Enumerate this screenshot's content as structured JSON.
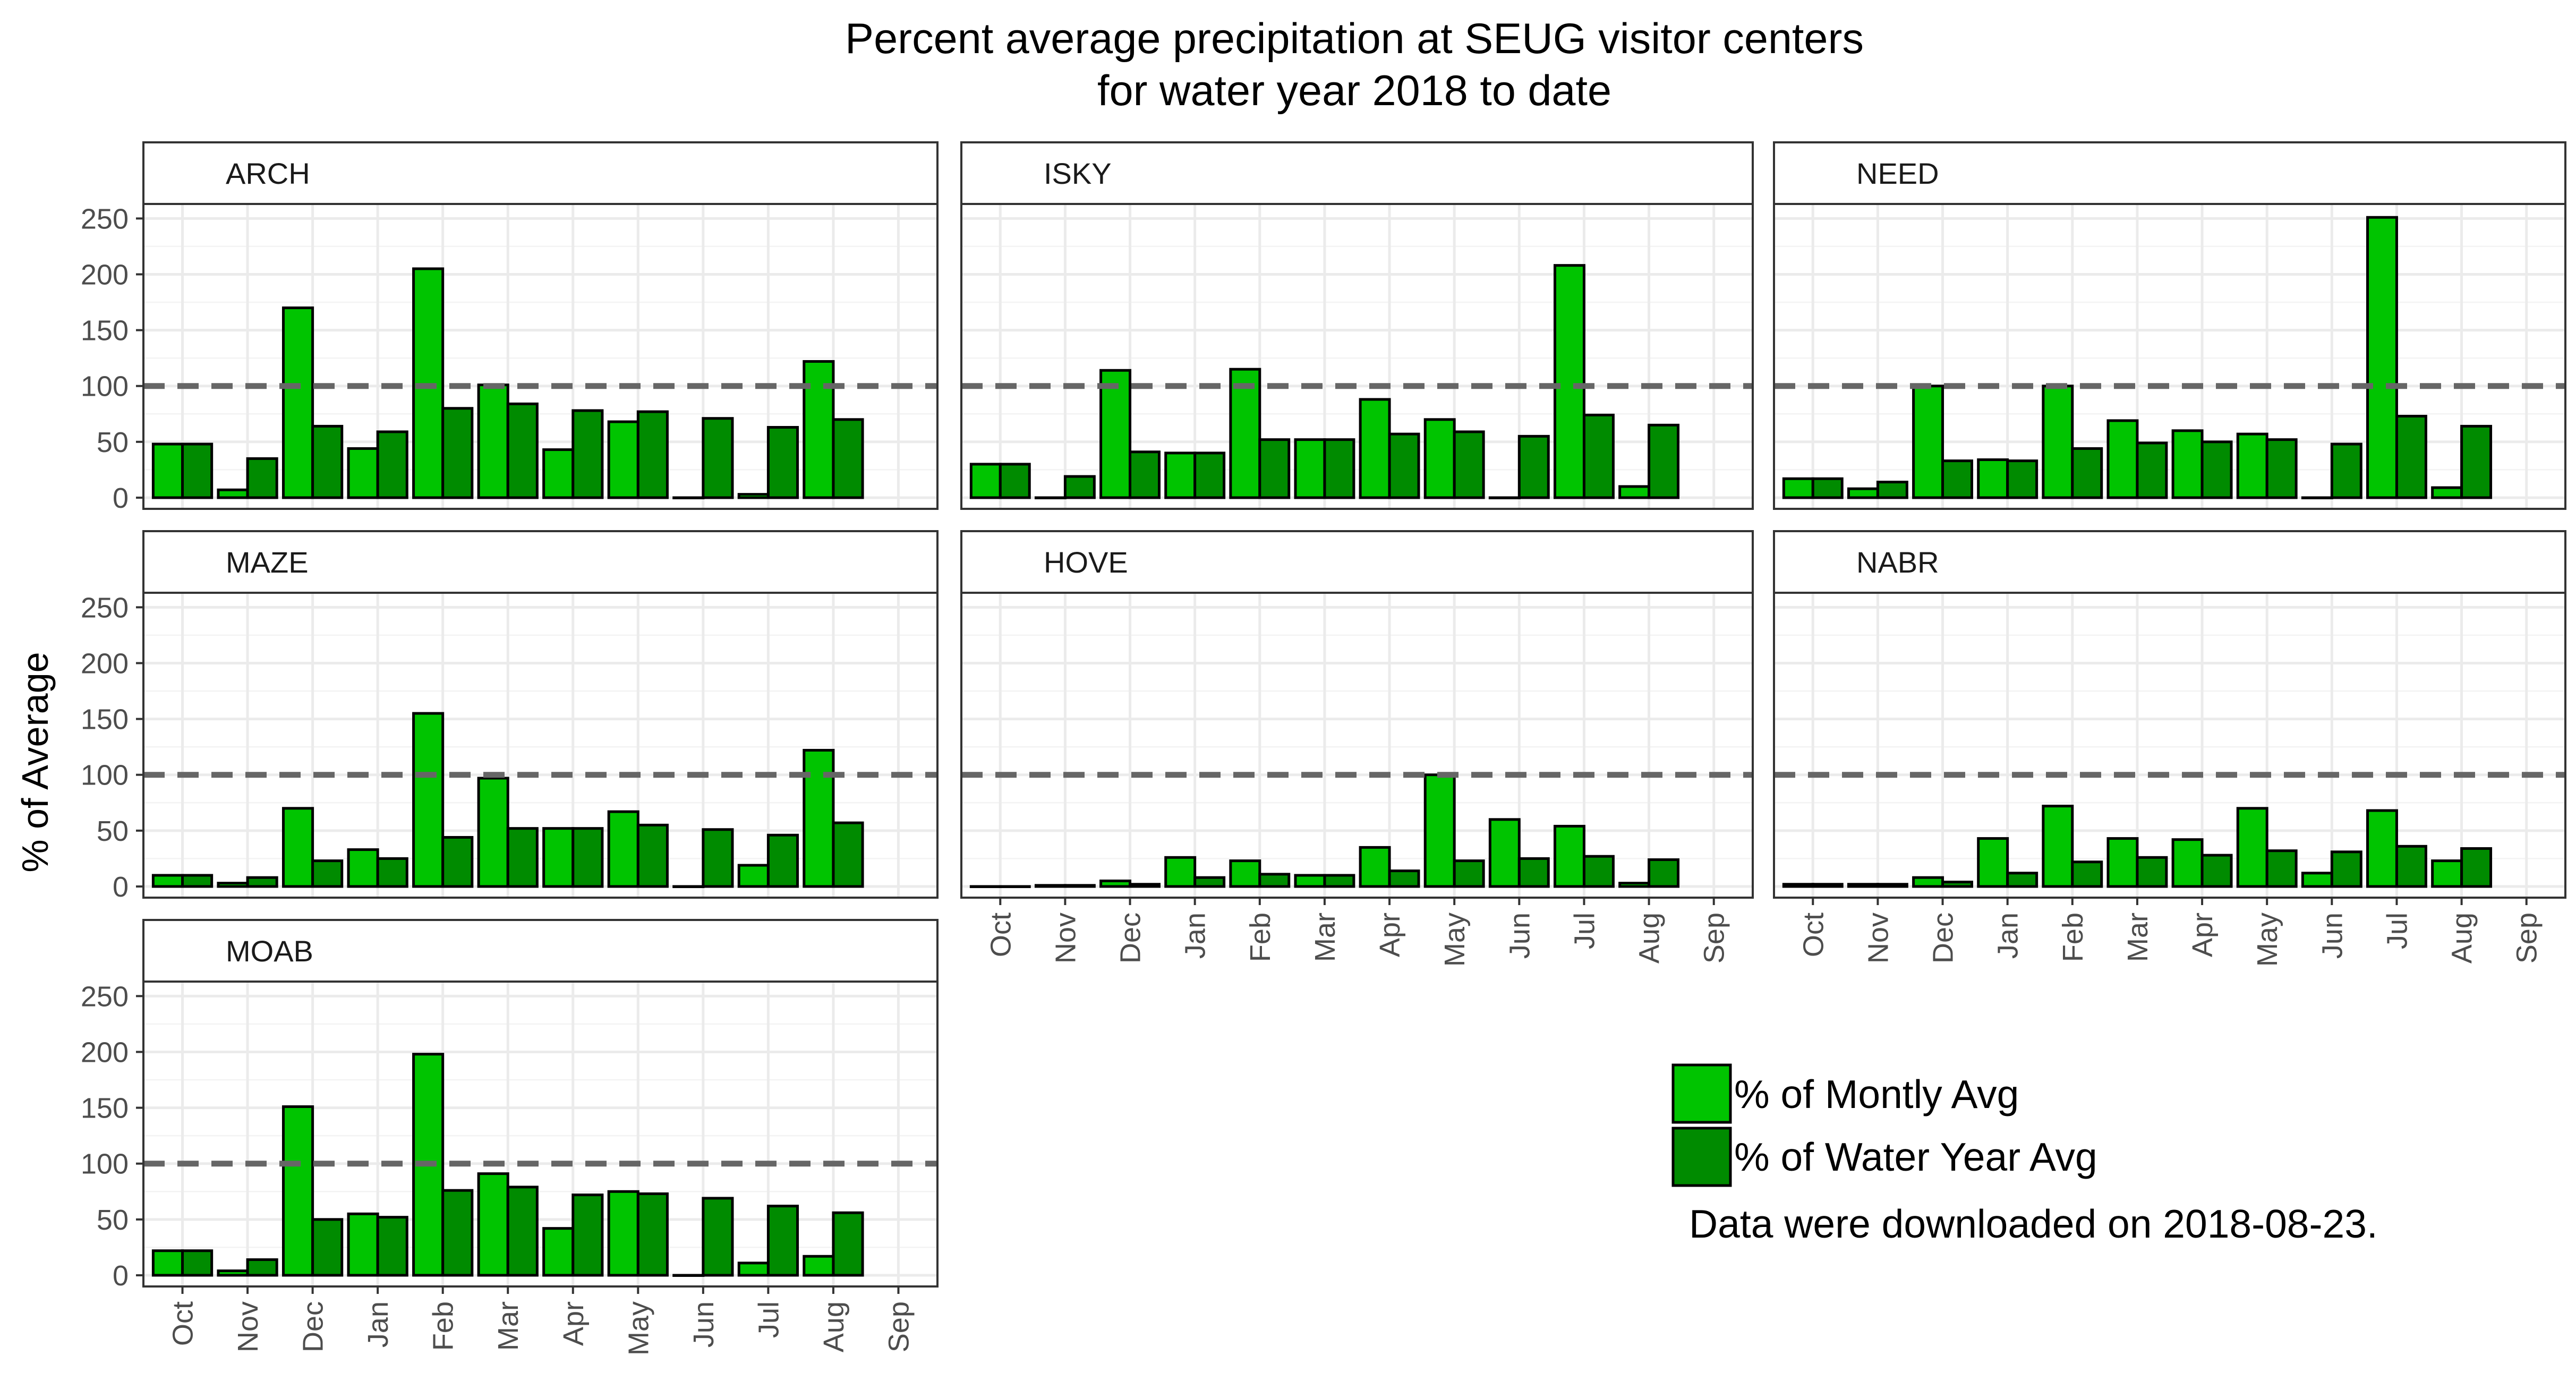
{
  "chart_data": {
    "type": "bar",
    "title": "Percent average precipitation at SEUG visitor centers",
    "subtitle": "for water year 2018  to date",
    "ylabel": "% of Average",
    "xlabel": "",
    "categories": [
      "Oct",
      "Nov",
      "Dec",
      "Jan",
      "Feb",
      "Mar",
      "Apr",
      "May",
      "Jun",
      "Jul",
      "Aug",
      "Sep"
    ],
    "yticks": [
      0,
      50,
      100,
      150,
      200,
      250
    ],
    "ylim": [
      -10,
      263
    ],
    "reference_line": 100,
    "grid": true,
    "legend_position": "bottom-right",
    "colors": {
      "monthly": "#00c400",
      "water_year": "#008b00"
    },
    "series_names": [
      "% of Montly Avg",
      "% of Water Year Avg"
    ],
    "panels": [
      {
        "name": "ARCH",
        "monthly": [
          48,
          7,
          170,
          44,
          205,
          101,
          43,
          68,
          0,
          3,
          122,
          null
        ],
        "water_year": [
          48,
          35,
          64,
          59,
          80,
          84,
          78,
          77,
          71,
          63,
          70,
          null
        ]
      },
      {
        "name": "ISKY",
        "monthly": [
          30,
          0,
          114,
          40,
          115,
          52,
          88,
          70,
          0,
          208,
          10,
          null
        ],
        "water_year": [
          30,
          19,
          41,
          40,
          52,
          52,
          57,
          59,
          55,
          74,
          65,
          null
        ]
      },
      {
        "name": "NEED",
        "monthly": [
          17,
          8,
          100,
          34,
          100,
          69,
          60,
          57,
          0,
          251,
          9,
          null
        ],
        "water_year": [
          17,
          14,
          33,
          33,
          44,
          49,
          50,
          52,
          48,
          73,
          64,
          null
        ]
      },
      {
        "name": "MAZE",
        "monthly": [
          10,
          3,
          70,
          33,
          155,
          97,
          52,
          67,
          0,
          19,
          122,
          null
        ],
        "water_year": [
          10,
          8,
          23,
          25,
          44,
          52,
          52,
          55,
          51,
          46,
          57,
          null
        ]
      },
      {
        "name": "HOVE",
        "monthly": [
          0,
          1,
          5,
          26,
          23,
          10,
          35,
          100,
          60,
          54,
          3,
          null
        ],
        "water_year": [
          0,
          1,
          2,
          8,
          11,
          10,
          14,
          23,
          25,
          27,
          24,
          null
        ]
      },
      {
        "name": "NABR",
        "monthly": [
          2,
          2,
          8,
          43,
          72,
          43,
          42,
          70,
          12,
          68,
          23,
          null
        ],
        "water_year": [
          2,
          2,
          4,
          12,
          22,
          26,
          28,
          32,
          31,
          36,
          34,
          null
        ]
      },
      {
        "name": "MOAB",
        "monthly": [
          22,
          4,
          151,
          55,
          198,
          91,
          42,
          75,
          0,
          11,
          17,
          null
        ],
        "water_year": [
          22,
          14,
          50,
          52,
          76,
          79,
          72,
          73,
          69,
          62,
          56,
          null
        ]
      }
    ],
    "note": "Data were downloaded on 2018-08-23."
  }
}
